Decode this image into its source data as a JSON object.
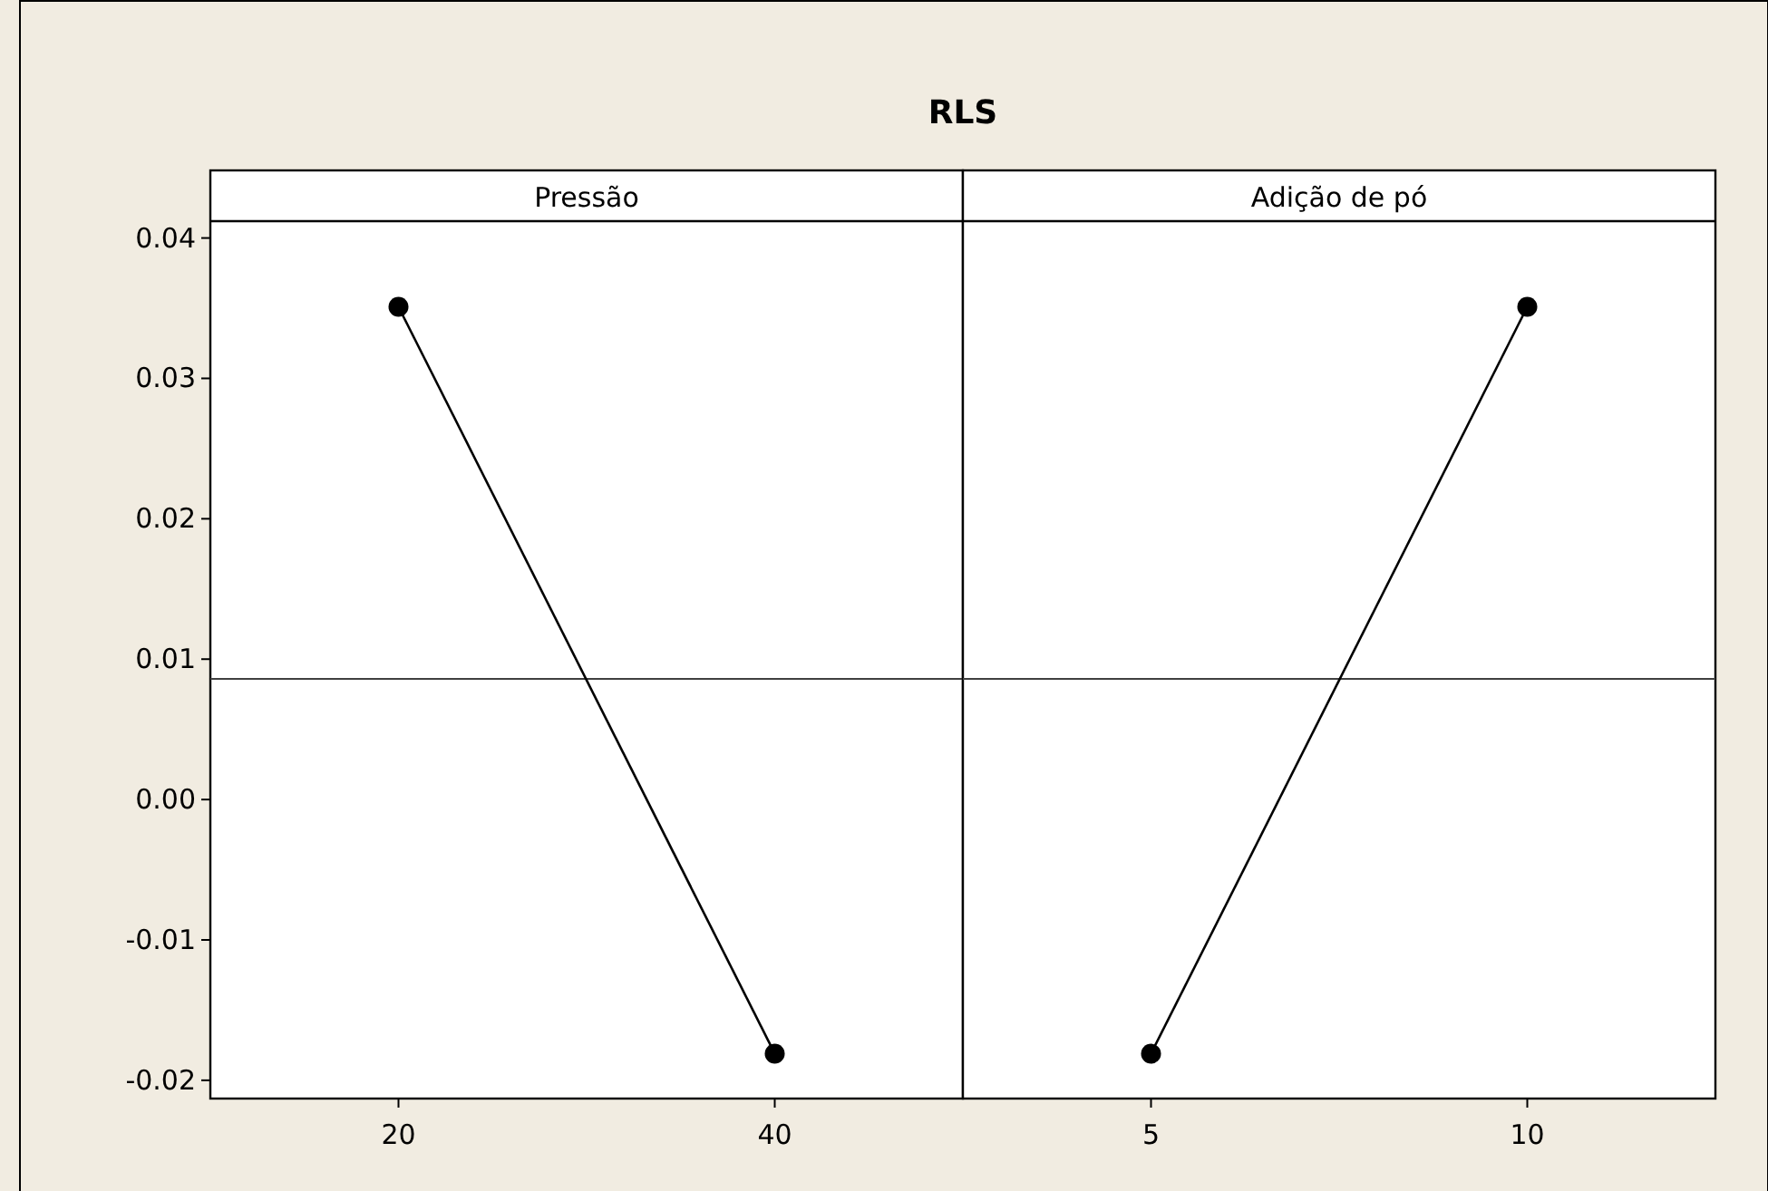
{
  "chart_data": [
    {
      "type": "line",
      "title": "RLS",
      "subtitle": "Pressão",
      "categories": [
        "20",
        "40"
      ],
      "series": [
        {
          "color": "#000000",
          "values": [
            0.0351,
            -0.0181
          ]
        }
      ],
      "marker": "circle",
      "ylim": [
        -0.0213,
        0.0412
      ],
      "yticks": [
        {
          "value": -0.02,
          "label": "-0.02"
        },
        {
          "value": -0.01,
          "label": "-0.01"
        },
        {
          "value": 0,
          "label": "0.00"
        },
        {
          "value": 0.01,
          "label": "0.01"
        },
        {
          "value": 0.02,
          "label": "0.02"
        },
        {
          "value": 0.03,
          "label": "0.03"
        },
        {
          "value": 0.04,
          "label": "0.04"
        }
      ],
      "ref_lines": [
        {
          "axis": "y",
          "value": 0.0086,
          "color": "#404040"
        }
      ]
    },
    {
      "type": "line",
      "subtitle": "Adição de pó",
      "categories": [
        "5",
        "10"
      ],
      "series": [
        {
          "color": "#000000",
          "values": [
            -0.0181,
            0.0351
          ]
        }
      ],
      "marker": "circle",
      "ylim": [
        -0.0213,
        0.0412
      ],
      "ref_lines": [
        {
          "axis": "y",
          "value": 0.0086,
          "color": "#404040"
        }
      ],
      "tick_labels": "x"
    }
  ]
}
